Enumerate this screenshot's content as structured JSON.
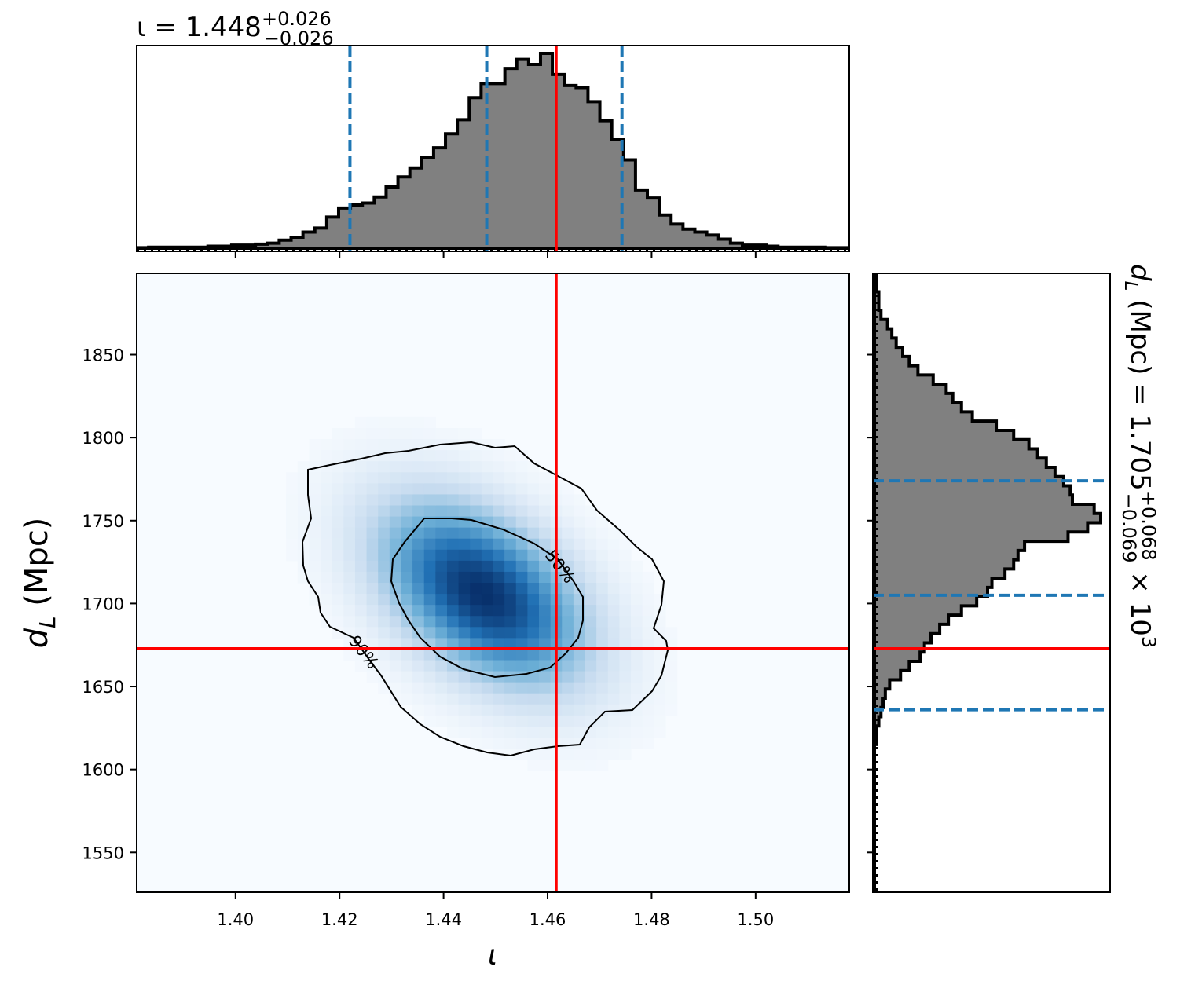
{
  "chart_data": {
    "type": "corner",
    "title": {
      "top": {
        "prefix": "ι = 1.448",
        "sup": "+0.026",
        "sub": "−0.026"
      },
      "right": {
        "prefix": "d",
        "prefix_sub": "L",
        "mid": " (Mpc) = 1.705",
        "sup": "+0.068",
        "sub": "−0.069",
        "suffix": " × 10",
        "suffix_sup": "3"
      }
    },
    "xlabel": "ι",
    "ylabel": {
      "main": "d",
      "sub": "L",
      "rest": " (Mpc)"
    },
    "xlim": [
      1.381,
      1.518
    ],
    "ylim": [
      1526,
      1899
    ],
    "xticks": [
      "1.40",
      "1.42",
      "1.44",
      "1.46",
      "1.48",
      "1.50"
    ],
    "xtick_values": [
      1.4,
      1.42,
      1.44,
      1.46,
      1.48,
      1.5
    ],
    "yticks": [
      "1550",
      "1600",
      "1650",
      "1700",
      "1750",
      "1800",
      "1850"
    ],
    "ytick_values": [
      1550,
      1600,
      1650,
      1700,
      1750,
      1800,
      1850
    ],
    "true_value": {
      "iota": 1.4617,
      "dL": 1673
    },
    "colors": {
      "truth": "#ff0000",
      "quantile": "#1f77b4",
      "hist_fill": "#808080",
      "hist_edge": "#000000",
      "cmap_low": "#f7fbff",
      "cmap_high": "#08306b"
    },
    "contour_labels": [
      "50%",
      "90%"
    ],
    "top_hist": {
      "bin_edges": [
        1.381,
        1.518
      ],
      "quantile_lines": [
        1.422,
        1.4483,
        1.4743
      ],
      "counts": [
        0.5,
        1,
        1,
        1,
        1,
        1,
        2,
        2,
        3,
        3,
        4,
        5,
        8,
        11,
        16,
        20,
        31,
        40,
        43,
        45,
        51,
        61,
        71,
        80,
        90,
        100,
        114,
        128,
        150,
        164,
        164,
        179,
        188,
        183,
        194,
        173,
        162,
        160,
        146,
        127,
        108,
        88,
        58,
        50,
        33,
        24,
        19,
        16,
        13,
        9,
        5,
        3,
        3,
        2,
        1,
        1,
        1,
        1,
        0.5,
        0.5
      ]
    },
    "right_hist": {
      "bin_range": [
        1526,
        1899
      ],
      "quantile_lines": [
        1636,
        1705,
        1774
      ],
      "counts": [
        0,
        0,
        0,
        0,
        0,
        0,
        0,
        0,
        0,
        0,
        0,
        0,
        0,
        0,
        0,
        0,
        1,
        1,
        2,
        3,
        4,
        5,
        7,
        12,
        16,
        21,
        23,
        26,
        30,
        34,
        40,
        47,
        52,
        54,
        60,
        64,
        66,
        69,
        89,
        98,
        104,
        101,
        91,
        90,
        87,
        83,
        79,
        75,
        71,
        64,
        56,
        45,
        40,
        36,
        33,
        27,
        20,
        16,
        13,
        10,
        8,
        6,
        3,
        2,
        2,
        1,
        1
      ]
    },
    "density": {
      "center": {
        "iota": 1.4475,
        "dL": 1706
      },
      "sigma": {
        "iota": 0.0125,
        "dL": 35
      },
      "correlation": -0.45
    }
  }
}
